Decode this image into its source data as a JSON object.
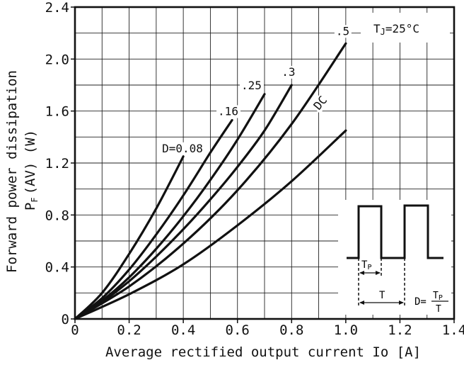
{
  "chart_data": {
    "type": "line",
    "title": "",
    "xlabel": "Average rectified output current Io [A]",
    "ylabel_line1": "Forward power dissipation",
    "ylabel_sub_main": "P",
    "ylabel_sub_sub": "F",
    "ylabel_sub_rest": "(AV) (W)",
    "xlim": [
      0,
      1.4
    ],
    "ylim": [
      0,
      2.4
    ],
    "xticks": [
      "0",
      "0.2",
      "0.4",
      "0.6",
      "0.8",
      "1.0",
      "1.2",
      "1.4"
    ],
    "yticks": [
      "0",
      "0.4",
      "0.8",
      "1.2",
      "1.6",
      "2.0",
      "2.4"
    ],
    "grid": true,
    "condition_main": "T",
    "condition_sub": "J",
    "condition_rest": "=25°C",
    "series": [
      {
        "name": "D=0.08",
        "x": [
          0,
          0.1,
          0.2,
          0.3,
          0.4
        ],
        "y": [
          0,
          0.2,
          0.5,
          0.85,
          1.25
        ]
      },
      {
        "name": ".16",
        "x": [
          0,
          0.1,
          0.2,
          0.3,
          0.4,
          0.5,
          0.58
        ],
        "y": [
          0,
          0.16,
          0.38,
          0.65,
          0.95,
          1.28,
          1.53
        ]
      },
      {
        "name": ".25",
        "x": [
          0,
          0.1,
          0.2,
          0.3,
          0.4,
          0.5,
          0.6,
          0.7
        ],
        "y": [
          0,
          0.14,
          0.32,
          0.54,
          0.79,
          1.07,
          1.38,
          1.73
        ]
      },
      {
        "name": ".3",
        "x": [
          0,
          0.1,
          0.2,
          0.3,
          0.4,
          0.5,
          0.6,
          0.7,
          0.8
        ],
        "y": [
          0,
          0.13,
          0.29,
          0.48,
          0.69,
          0.92,
          1.17,
          1.45,
          1.8
        ]
      },
      {
        "name": ".5",
        "x": [
          0,
          0.2,
          0.4,
          0.6,
          0.8,
          1.0
        ],
        "y": [
          0,
          0.25,
          0.58,
          0.99,
          1.5,
          2.12
        ]
      },
      {
        "name": "DC",
        "x": [
          0,
          0.2,
          0.4,
          0.6,
          0.8,
          1.0
        ],
        "y": [
          0,
          0.19,
          0.42,
          0.72,
          1.06,
          1.45
        ]
      }
    ]
  },
  "inset": {
    "tp_main": "T",
    "tp_sub": "P",
    "t_label": "T",
    "duty_lhs": "D=",
    "duty_num_main": "T",
    "duty_num_sub": "P",
    "duty_den": "T"
  }
}
